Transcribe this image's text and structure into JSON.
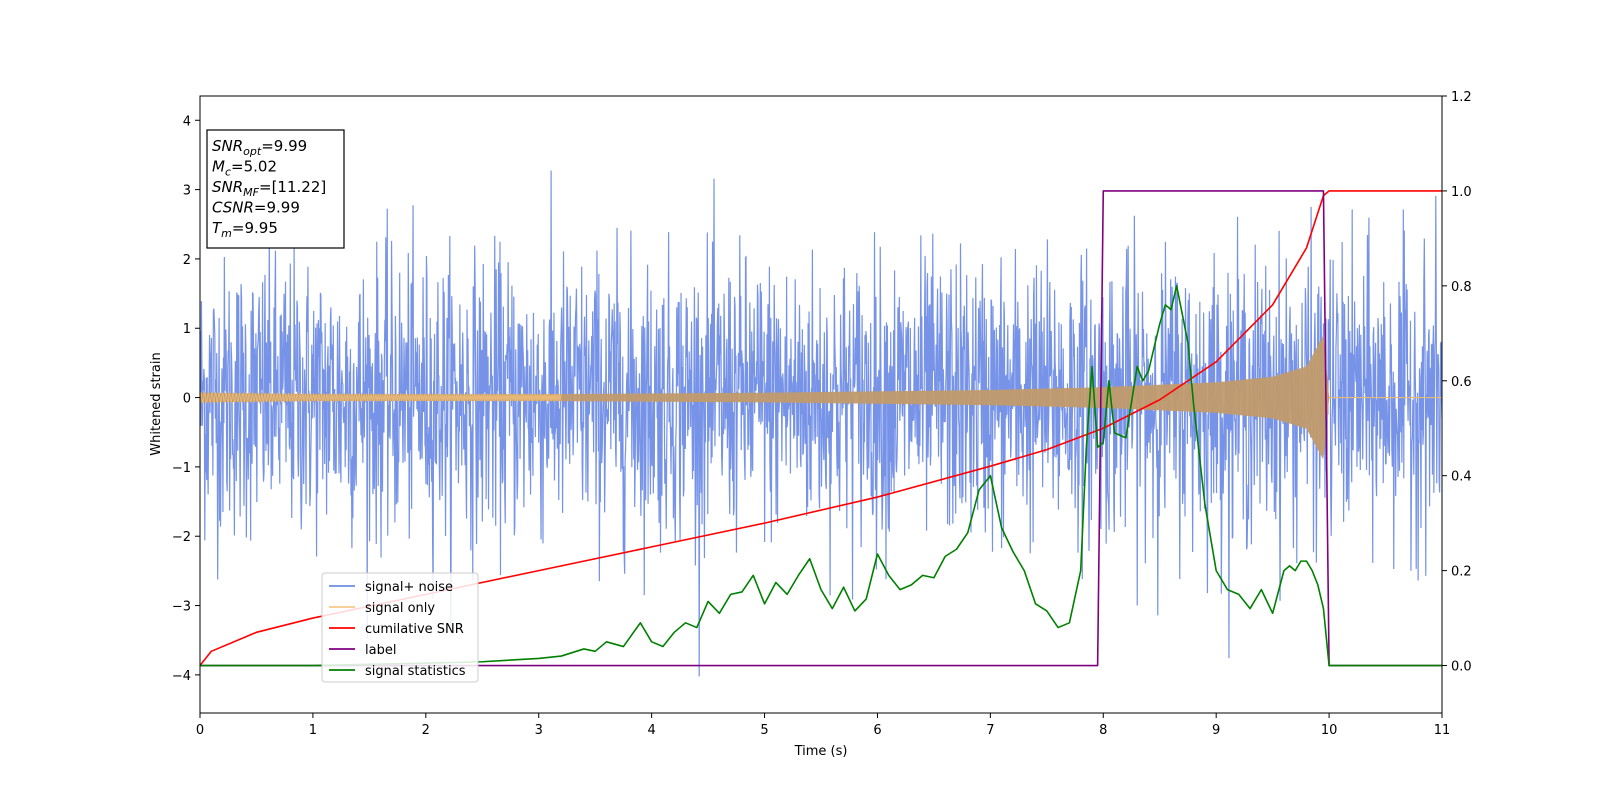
{
  "chart_data": {
    "type": "line",
    "xlabel": "Time (s)",
    "ylabel": "Whitened strain",
    "xlim": [
      0,
      11
    ],
    "ylim_left": [
      -4.55,
      4.35
    ],
    "ylim_right": [
      -0.1,
      1.2
    ],
    "x_ticks": [
      "0",
      "1",
      "2",
      "3",
      "4",
      "5",
      "6",
      "7",
      "8",
      "9",
      "10",
      "11"
    ],
    "y_left_ticks": [
      "−4",
      "−3",
      "−2",
      "−1",
      "0",
      "1",
      "2",
      "3",
      "4"
    ],
    "y_left_tick_values": [
      -4,
      -3,
      -2,
      -1,
      0,
      1,
      2,
      3,
      4
    ],
    "y_right_ticks": [
      "0.0",
      "0.2",
      "0.4",
      "0.6",
      "0.8",
      "1.0",
      "1.2"
    ],
    "y_right_tick_values": [
      0.0,
      0.2,
      0.4,
      0.6,
      0.8,
      1.0,
      1.2
    ],
    "annotation": {
      "lines": [
        {
          "base": "SNR",
          "sub": "opt",
          "rest": "=9.99"
        },
        {
          "base": "M",
          "sub": "c",
          "rest": "=5.02"
        },
        {
          "base": "SNR",
          "sub": "MF",
          "rest": "=[11.22]"
        },
        {
          "base": "CSNR",
          "sub": "",
          "rest": "=9.99"
        },
        {
          "base": "T",
          "sub": "m",
          "rest": "=9.95"
        }
      ]
    },
    "legend": {
      "placement": "lower-left",
      "entries": [
        {
          "label": "signal+ noise",
          "color": "#6f8de6"
        },
        {
          "label": "signal only",
          "color": "#f5c98a"
        },
        {
          "label": "cumilative SNR",
          "color": "#ff0000"
        },
        {
          "label": "label",
          "color": "#800080"
        },
        {
          "label": "signal statistics",
          "color": "#008000"
        }
      ]
    },
    "series": [
      {
        "name": "signal+ noise",
        "axis": "left",
        "color": "#6f8de6",
        "kind": "noise",
        "x_range": [
          0,
          11
        ],
        "std": 1.0,
        "y_extremes": [
          -4.2,
          4.0
        ]
      },
      {
        "name": "signal only",
        "axis": "left",
        "color": "#c19a6b",
        "kind": "chirp_envelope",
        "x": [
          0,
          1,
          2,
          3,
          4,
          5,
          6,
          7,
          8,
          9,
          9.5,
          9.8,
          9.95,
          10.0,
          11
        ],
        "envelope": [
          0.07,
          0.05,
          0.05,
          0.05,
          0.06,
          0.07,
          0.09,
          0.11,
          0.15,
          0.22,
          0.3,
          0.45,
          0.9,
          0.0,
          0.0
        ]
      },
      {
        "name": "cumilative SNR",
        "axis": "right",
        "color": "#ff0000",
        "x": [
          0,
          0.1,
          0.5,
          1,
          2,
          3,
          4,
          5,
          6,
          7,
          7.5,
          8,
          8.5,
          9,
          9.5,
          9.8,
          9.95,
          10,
          11
        ],
        "y": [
          0.0,
          0.03,
          0.07,
          0.1,
          0.15,
          0.2,
          0.25,
          0.3,
          0.355,
          0.42,
          0.455,
          0.5,
          0.56,
          0.64,
          0.76,
          0.88,
          0.99,
          1.0,
          1.0
        ]
      },
      {
        "name": "label",
        "axis": "right",
        "color": "#800080",
        "x": [
          0,
          7.95,
          8.0,
          9.95,
          10.0,
          11
        ],
        "y": [
          0.0,
          0.0,
          1.0,
          1.0,
          0.0,
          0.0
        ]
      },
      {
        "name": "signal statistics",
        "axis": "right",
        "color": "#008000",
        "x": [
          0,
          1,
          2,
          2.5,
          3,
          3.2,
          3.4,
          3.5,
          3.6,
          3.75,
          3.9,
          4.0,
          4.1,
          4.2,
          4.3,
          4.4,
          4.5,
          4.6,
          4.7,
          4.8,
          4.9,
          5.0,
          5.1,
          5.2,
          5.3,
          5.4,
          5.5,
          5.6,
          5.7,
          5.8,
          5.9,
          6.0,
          6.1,
          6.2,
          6.3,
          6.4,
          6.5,
          6.6,
          6.7,
          6.8,
          6.9,
          7.0,
          7.1,
          7.2,
          7.3,
          7.4,
          7.5,
          7.6,
          7.7,
          7.8,
          7.85,
          7.9,
          7.95,
          8.0,
          8.05,
          8.1,
          8.2,
          8.3,
          8.35,
          8.4,
          8.5,
          8.55,
          8.6,
          8.65,
          8.7,
          8.75,
          8.8,
          8.9,
          9.0,
          9.1,
          9.2,
          9.3,
          9.4,
          9.5,
          9.6,
          9.65,
          9.7,
          9.75,
          9.8,
          9.85,
          9.9,
          9.95,
          10.0,
          10.05,
          11
        ],
        "y": [
          0.0,
          0.0,
          0.005,
          0.008,
          0.015,
          0.02,
          0.035,
          0.03,
          0.05,
          0.04,
          0.09,
          0.05,
          0.04,
          0.07,
          0.09,
          0.08,
          0.135,
          0.11,
          0.15,
          0.155,
          0.19,
          0.13,
          0.175,
          0.15,
          0.19,
          0.225,
          0.16,
          0.12,
          0.165,
          0.115,
          0.14,
          0.235,
          0.19,
          0.16,
          0.17,
          0.19,
          0.185,
          0.23,
          0.245,
          0.28,
          0.37,
          0.4,
          0.29,
          0.24,
          0.2,
          0.13,
          0.115,
          0.08,
          0.09,
          0.2,
          0.46,
          0.63,
          0.46,
          0.47,
          0.6,
          0.49,
          0.48,
          0.63,
          0.6,
          0.62,
          0.72,
          0.76,
          0.75,
          0.8,
          0.74,
          0.68,
          0.55,
          0.34,
          0.2,
          0.16,
          0.15,
          0.12,
          0.16,
          0.11,
          0.2,
          0.21,
          0.2,
          0.22,
          0.22,
          0.2,
          0.17,
          0.12,
          0.0,
          0.0,
          0.0
        ]
      }
    ]
  }
}
